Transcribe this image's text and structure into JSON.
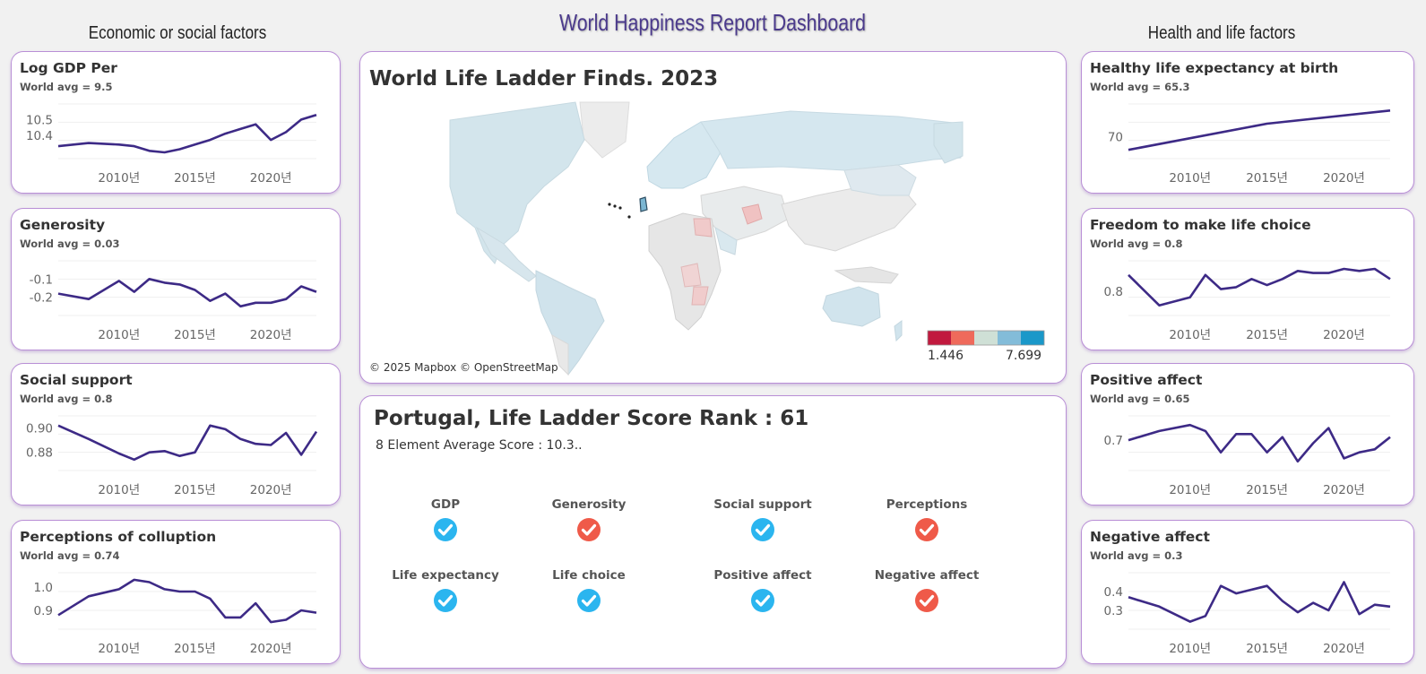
{
  "dashboard_title": "World Happiness Report Dashboard",
  "left_section_title": "Economic or social factors",
  "right_section_title": "Health and life factors",
  "colors": {
    "line": "#3d2a86",
    "card_border": "#b98fd6",
    "check_good": "#2bb5ef",
    "check_bad": "#ef5a49",
    "title": "#4b3a8c"
  },
  "kpis": {
    "gdp": {
      "title": "Log GDP Per",
      "avg": "World avg = 9.5",
      "yticks": [
        "10.5",
        "10.4"
      ],
      "xticks": [
        "2010년",
        "2015년",
        "2020년"
      ],
      "chart_data": {
        "type": "line",
        "x": [
          2006,
          2008,
          2010,
          2011,
          2012,
          2013,
          2014,
          2015,
          2016,
          2017,
          2018,
          2019,
          2020,
          2021,
          2022,
          2023
        ],
        "values": [
          10.33,
          10.35,
          10.34,
          10.33,
          10.3,
          10.29,
          10.31,
          10.34,
          10.37,
          10.41,
          10.44,
          10.47,
          10.37,
          10.42,
          10.5,
          10.53
        ],
        "ylim": [
          10.25,
          10.6
        ]
      }
    },
    "generosity": {
      "title": "Generosity",
      "avg": "World avg = 0.03",
      "yticks": [
        "-0.1",
        "-0.2"
      ],
      "xticks": [
        "2010년",
        "2015년",
        "2020년"
      ],
      "chart_data": {
        "type": "line",
        "x": [
          2006,
          2008,
          2010,
          2011,
          2012,
          2013,
          2014,
          2015,
          2016,
          2017,
          2018,
          2019,
          2020,
          2021,
          2022,
          2023
        ],
        "values": [
          -0.18,
          -0.21,
          -0.11,
          -0.17,
          -0.1,
          -0.12,
          -0.13,
          -0.16,
          -0.22,
          -0.18,
          -0.25,
          -0.23,
          -0.23,
          -0.21,
          -0.14,
          -0.17
        ],
        "ylim": [
          -0.3,
          0.0
        ]
      }
    },
    "social": {
      "title": "Social support",
      "avg": "World avg = 0.8",
      "yticks": [
        "0.90",
        "0.88"
      ],
      "xticks": [
        "2010년",
        "2015년",
        "2020년"
      ],
      "chart_data": {
        "type": "line",
        "x": [
          2006,
          2008,
          2010,
          2011,
          2012,
          2013,
          2014,
          2015,
          2016,
          2017,
          2018,
          2019,
          2020,
          2021,
          2022,
          2023
        ],
        "values": [
          0.902,
          0.891,
          0.879,
          0.874,
          0.88,
          0.881,
          0.877,
          0.88,
          0.902,
          0.899,
          0.891,
          0.887,
          0.886,
          0.896,
          0.878,
          0.897
        ],
        "ylim": [
          0.865,
          0.91
        ]
      }
    },
    "corruption": {
      "title": "Perceptions of colluption",
      "avg": "World avg = 0.74",
      "yticks": [
        "1.0",
        "0.9"
      ],
      "xticks": [
        "2010년",
        "2015년",
        "2020년"
      ],
      "chart_data": {
        "type": "line",
        "x": [
          2006,
          2008,
          2010,
          2011,
          2012,
          2013,
          2014,
          2015,
          2016,
          2017,
          2018,
          2019,
          2020,
          2021,
          2022,
          2023
        ],
        "values": [
          0.88,
          0.96,
          0.99,
          1.03,
          1.02,
          0.99,
          0.98,
          0.98,
          0.95,
          0.87,
          0.87,
          0.93,
          0.85,
          0.86,
          0.9,
          0.89
        ],
        "ylim": [
          0.82,
          1.06
        ]
      }
    },
    "life_expectancy": {
      "title": "Healthy life expectancy at birth",
      "avg": "World avg = 65.3",
      "yticks": [
        "70"
      ],
      "xticks": [
        "2010년",
        "2015년",
        "2020년"
      ],
      "chart_data": {
        "type": "line",
        "x": [
          2006,
          2015,
          2023
        ],
        "values": [
          68.8,
          71.2,
          72.4
        ],
        "ylim": [
          68.0,
          73.0
        ]
      }
    },
    "freedom": {
      "title": "Freedom to make life choice",
      "avg": "World avg = 0.8",
      "yticks": [
        "0.8"
      ],
      "xticks": [
        "2010년",
        "2015년",
        "2020년"
      ],
      "chart_data": {
        "type": "line",
        "x": [
          2006,
          2008,
          2010,
          2011,
          2012,
          2013,
          2014,
          2015,
          2016,
          2017,
          2018,
          2019,
          2020,
          2021,
          2022,
          2023
        ],
        "values": [
          0.88,
          0.73,
          0.77,
          0.88,
          0.81,
          0.82,
          0.86,
          0.83,
          0.86,
          0.9,
          0.89,
          0.89,
          0.91,
          0.9,
          0.91,
          0.86
        ],
        "ylim": [
          0.68,
          0.95
        ]
      }
    },
    "positive": {
      "title": "Positive affect",
      "avg": "World avg = 0.65",
      "yticks": [
        "0.7"
      ],
      "xticks": [
        "2010년",
        "2015년",
        "2020년"
      ],
      "chart_data": {
        "type": "line",
        "x": [
          2006,
          2008,
          2010,
          2011,
          2012,
          2013,
          2014,
          2015,
          2016,
          2017,
          2018,
          2019,
          2020,
          2021,
          2022,
          2023
        ],
        "values": [
          0.7,
          0.73,
          0.75,
          0.73,
          0.66,
          0.72,
          0.72,
          0.66,
          0.71,
          0.63,
          0.69,
          0.74,
          0.64,
          0.66,
          0.67,
          0.71
        ],
        "ylim": [
          0.6,
          0.78
        ]
      }
    },
    "negative": {
      "title": "Negative affect",
      "avg": "World avg = 0.3",
      "yticks": [
        "0.4",
        "0.3"
      ],
      "xticks": [
        "2010년",
        "2015년",
        "2020년"
      ],
      "chart_data": {
        "type": "line",
        "x": [
          2006,
          2008,
          2010,
          2011,
          2012,
          2013,
          2014,
          2015,
          2016,
          2017,
          2018,
          2019,
          2020,
          2021,
          2022,
          2023
        ],
        "values": [
          0.37,
          0.32,
          0.24,
          0.27,
          0.43,
          0.39,
          0.41,
          0.43,
          0.35,
          0.29,
          0.34,
          0.3,
          0.45,
          0.28,
          0.33,
          0.32
        ],
        "ylim": [
          0.2,
          0.5
        ]
      }
    }
  },
  "map": {
    "title": "World Life Ladder Finds. 2023",
    "credit": "© 2025 Mapbox © OpenStreetMap",
    "legend_low": "1.446",
    "legend_high": "7.699",
    "legend_colors": [
      "#c1193e",
      "#ef6a5b",
      "#cfe0d6",
      "#83bcd9",
      "#1a98c9"
    ]
  },
  "rank": {
    "title": "Portugal, Life Ladder Score Rank : 61",
    "subtitle": "8 Element Average Score : 10.3..",
    "indicators": [
      {
        "label": "GDP",
        "status": "good"
      },
      {
        "label": "Generosity",
        "status": "bad"
      },
      {
        "label": "Social support",
        "status": "good"
      },
      {
        "label": "Perceptions",
        "status": "bad"
      },
      {
        "label": "Life expectancy",
        "status": "good"
      },
      {
        "label": "Life choice",
        "status": "good"
      },
      {
        "label": "Positive affect",
        "status": "good"
      },
      {
        "label": "Negative affect",
        "status": "bad"
      }
    ]
  }
}
